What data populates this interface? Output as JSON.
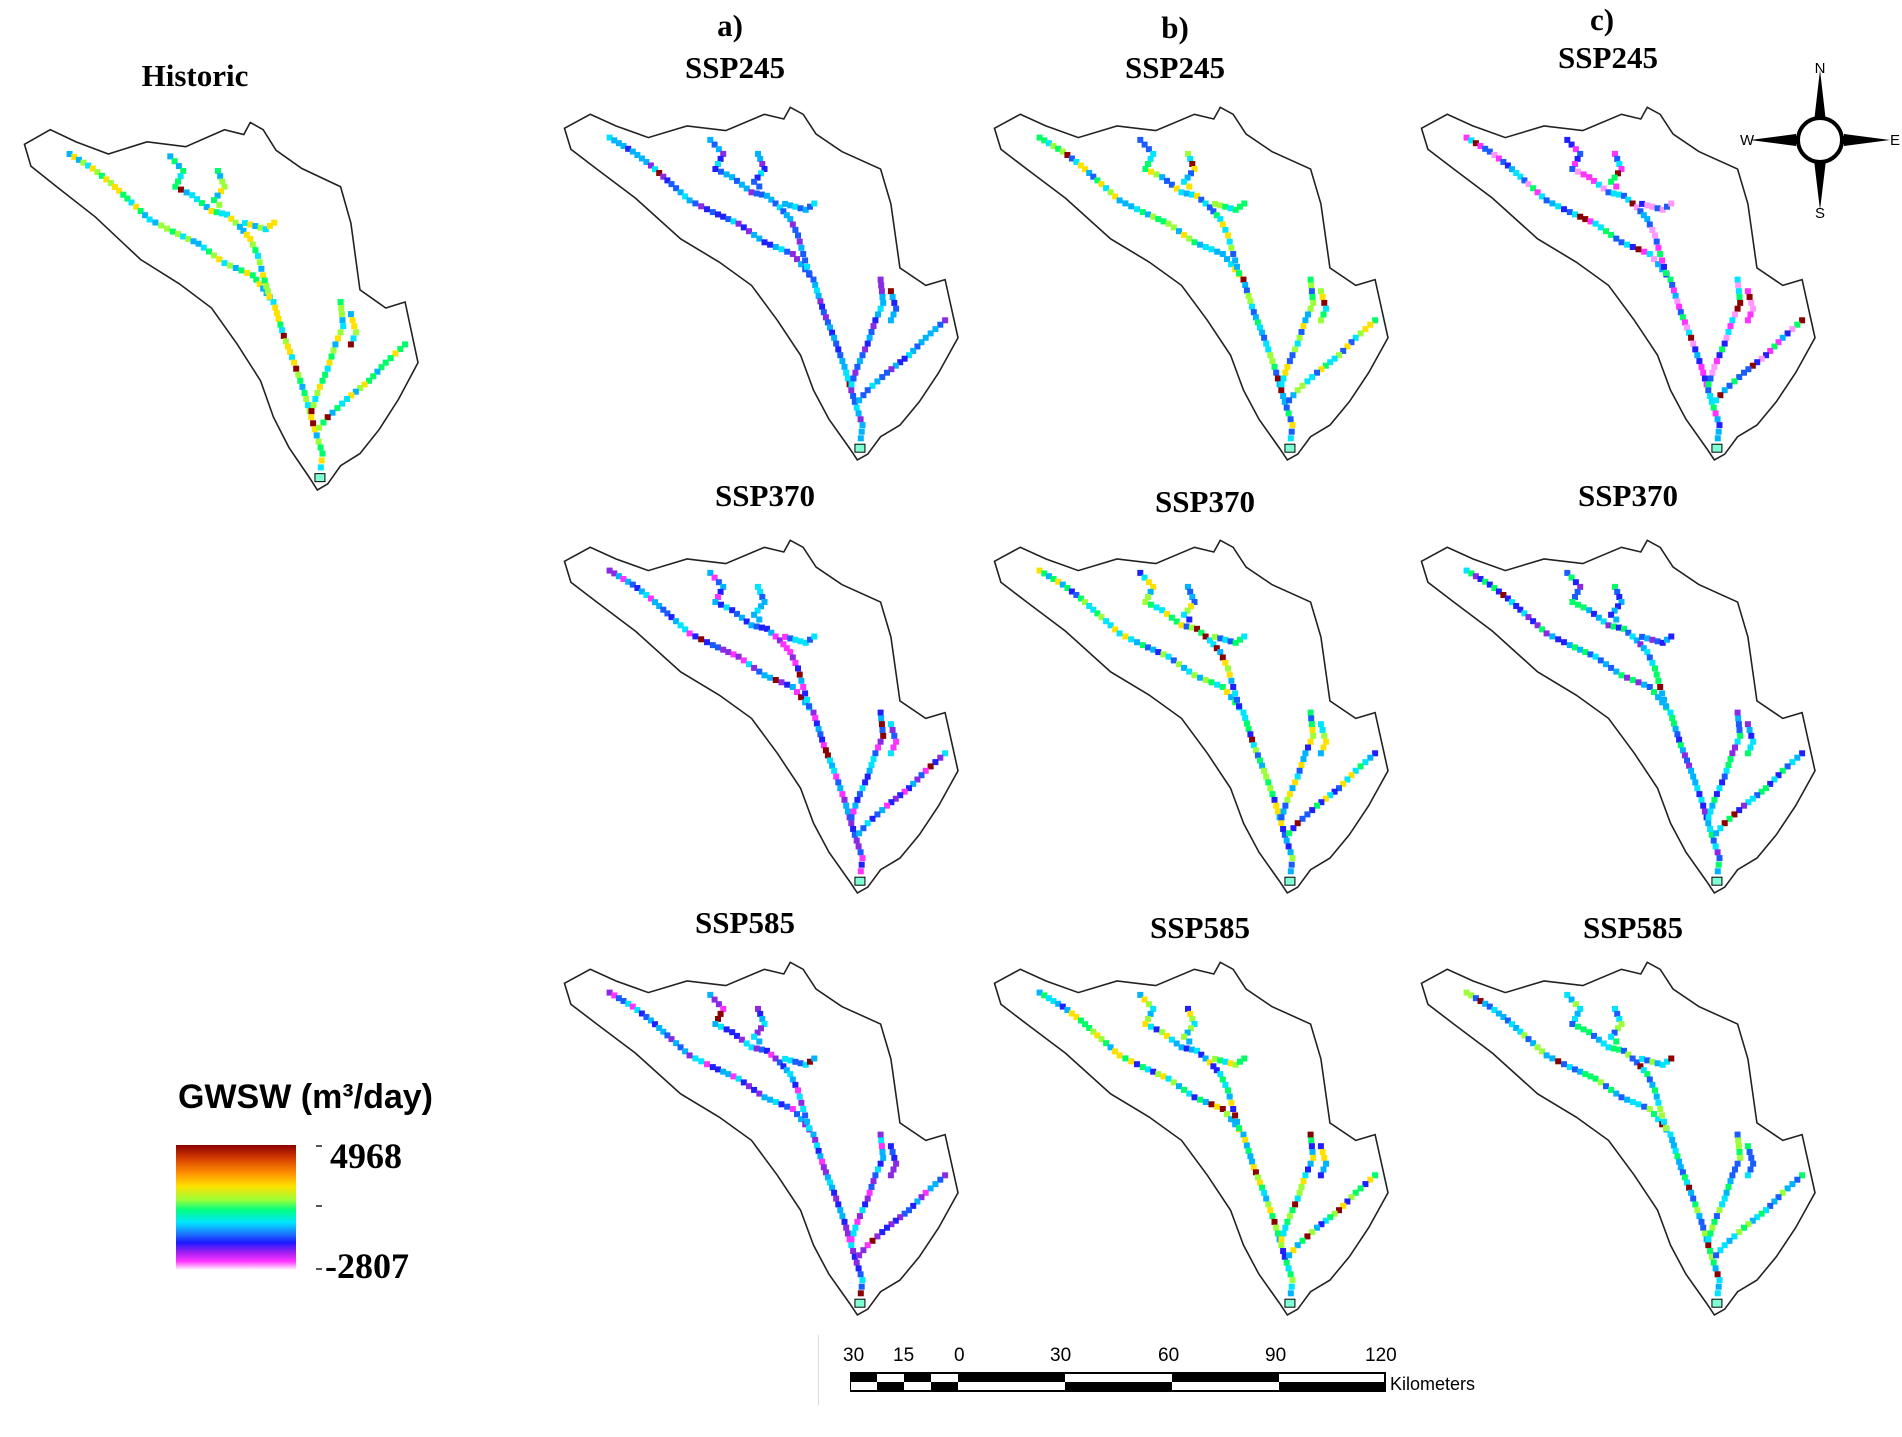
{
  "historic_title": "Historic",
  "columns": [
    {
      "tag": "a)",
      "rows": [
        "SSP245",
        "SSP370",
        "SSP585"
      ]
    },
    {
      "tag": "b)",
      "rows": [
        "SSP245",
        "SSP370",
        "SSP585"
      ]
    },
    {
      "tag": "c)",
      "rows": [
        "SSP245",
        "SSP370",
        "SSP585"
      ]
    }
  ],
  "legend": {
    "title": "GWSW (m³/day)",
    "max": "4968",
    "min": "-2807"
  },
  "compass": {
    "n": "N",
    "e": "E",
    "s": "S",
    "w": "W"
  },
  "scale_bar": {
    "ticks": [
      "30",
      "15",
      "0",
      "30",
      "60",
      "90",
      "120"
    ],
    "unit": "Kilometers"
  }
}
